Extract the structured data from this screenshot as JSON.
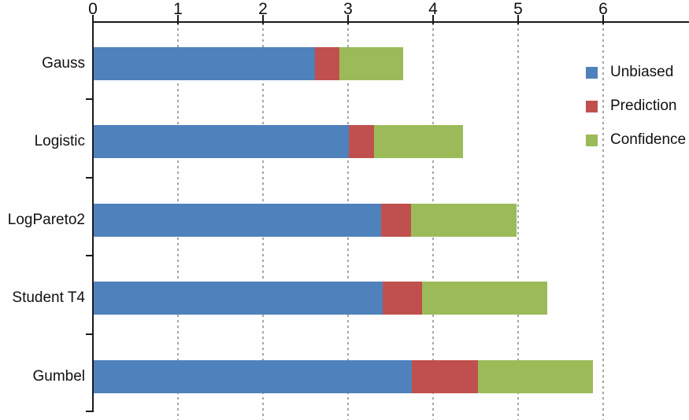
{
  "chart_data": {
    "type": "bar",
    "orientation": "horizontal",
    "stacked": true,
    "title": "",
    "xlabel": "",
    "ylabel": "",
    "categories": [
      "Gauss",
      "Logistic",
      "LogPareto2",
      "Student T4",
      "Gumbel"
    ],
    "series": [
      {
        "name": "Unbiased",
        "color": "#4F81BD",
        "values": [
          2.6,
          3.0,
          3.38,
          3.4,
          3.74
        ]
      },
      {
        "name": "Prediction",
        "color": "#C0504D",
        "values": [
          0.29,
          0.3,
          0.35,
          0.46,
          0.78
        ]
      },
      {
        "name": "Confidence",
        "color": "#9BBB59",
        "values": [
          0.75,
          1.04,
          1.24,
          1.47,
          1.35
        ]
      }
    ],
    "stack_totals": [
      3.64,
      4.34,
      4.97,
      5.33,
      5.87
    ],
    "x_ticks": [
      0,
      1,
      2,
      3,
      4,
      5,
      6
    ],
    "xlim": [
      0,
      7
    ],
    "axis_position": "top",
    "grid": "vertical-dotted",
    "legend_position": "upper-right",
    "legend": [
      "Unbiased",
      "Prediction",
      "Confidence"
    ]
  },
  "colors": {
    "axis": "#1a1a1a",
    "grid": "#8f8f8f",
    "background": "#fefefe",
    "text": "#111111"
  }
}
